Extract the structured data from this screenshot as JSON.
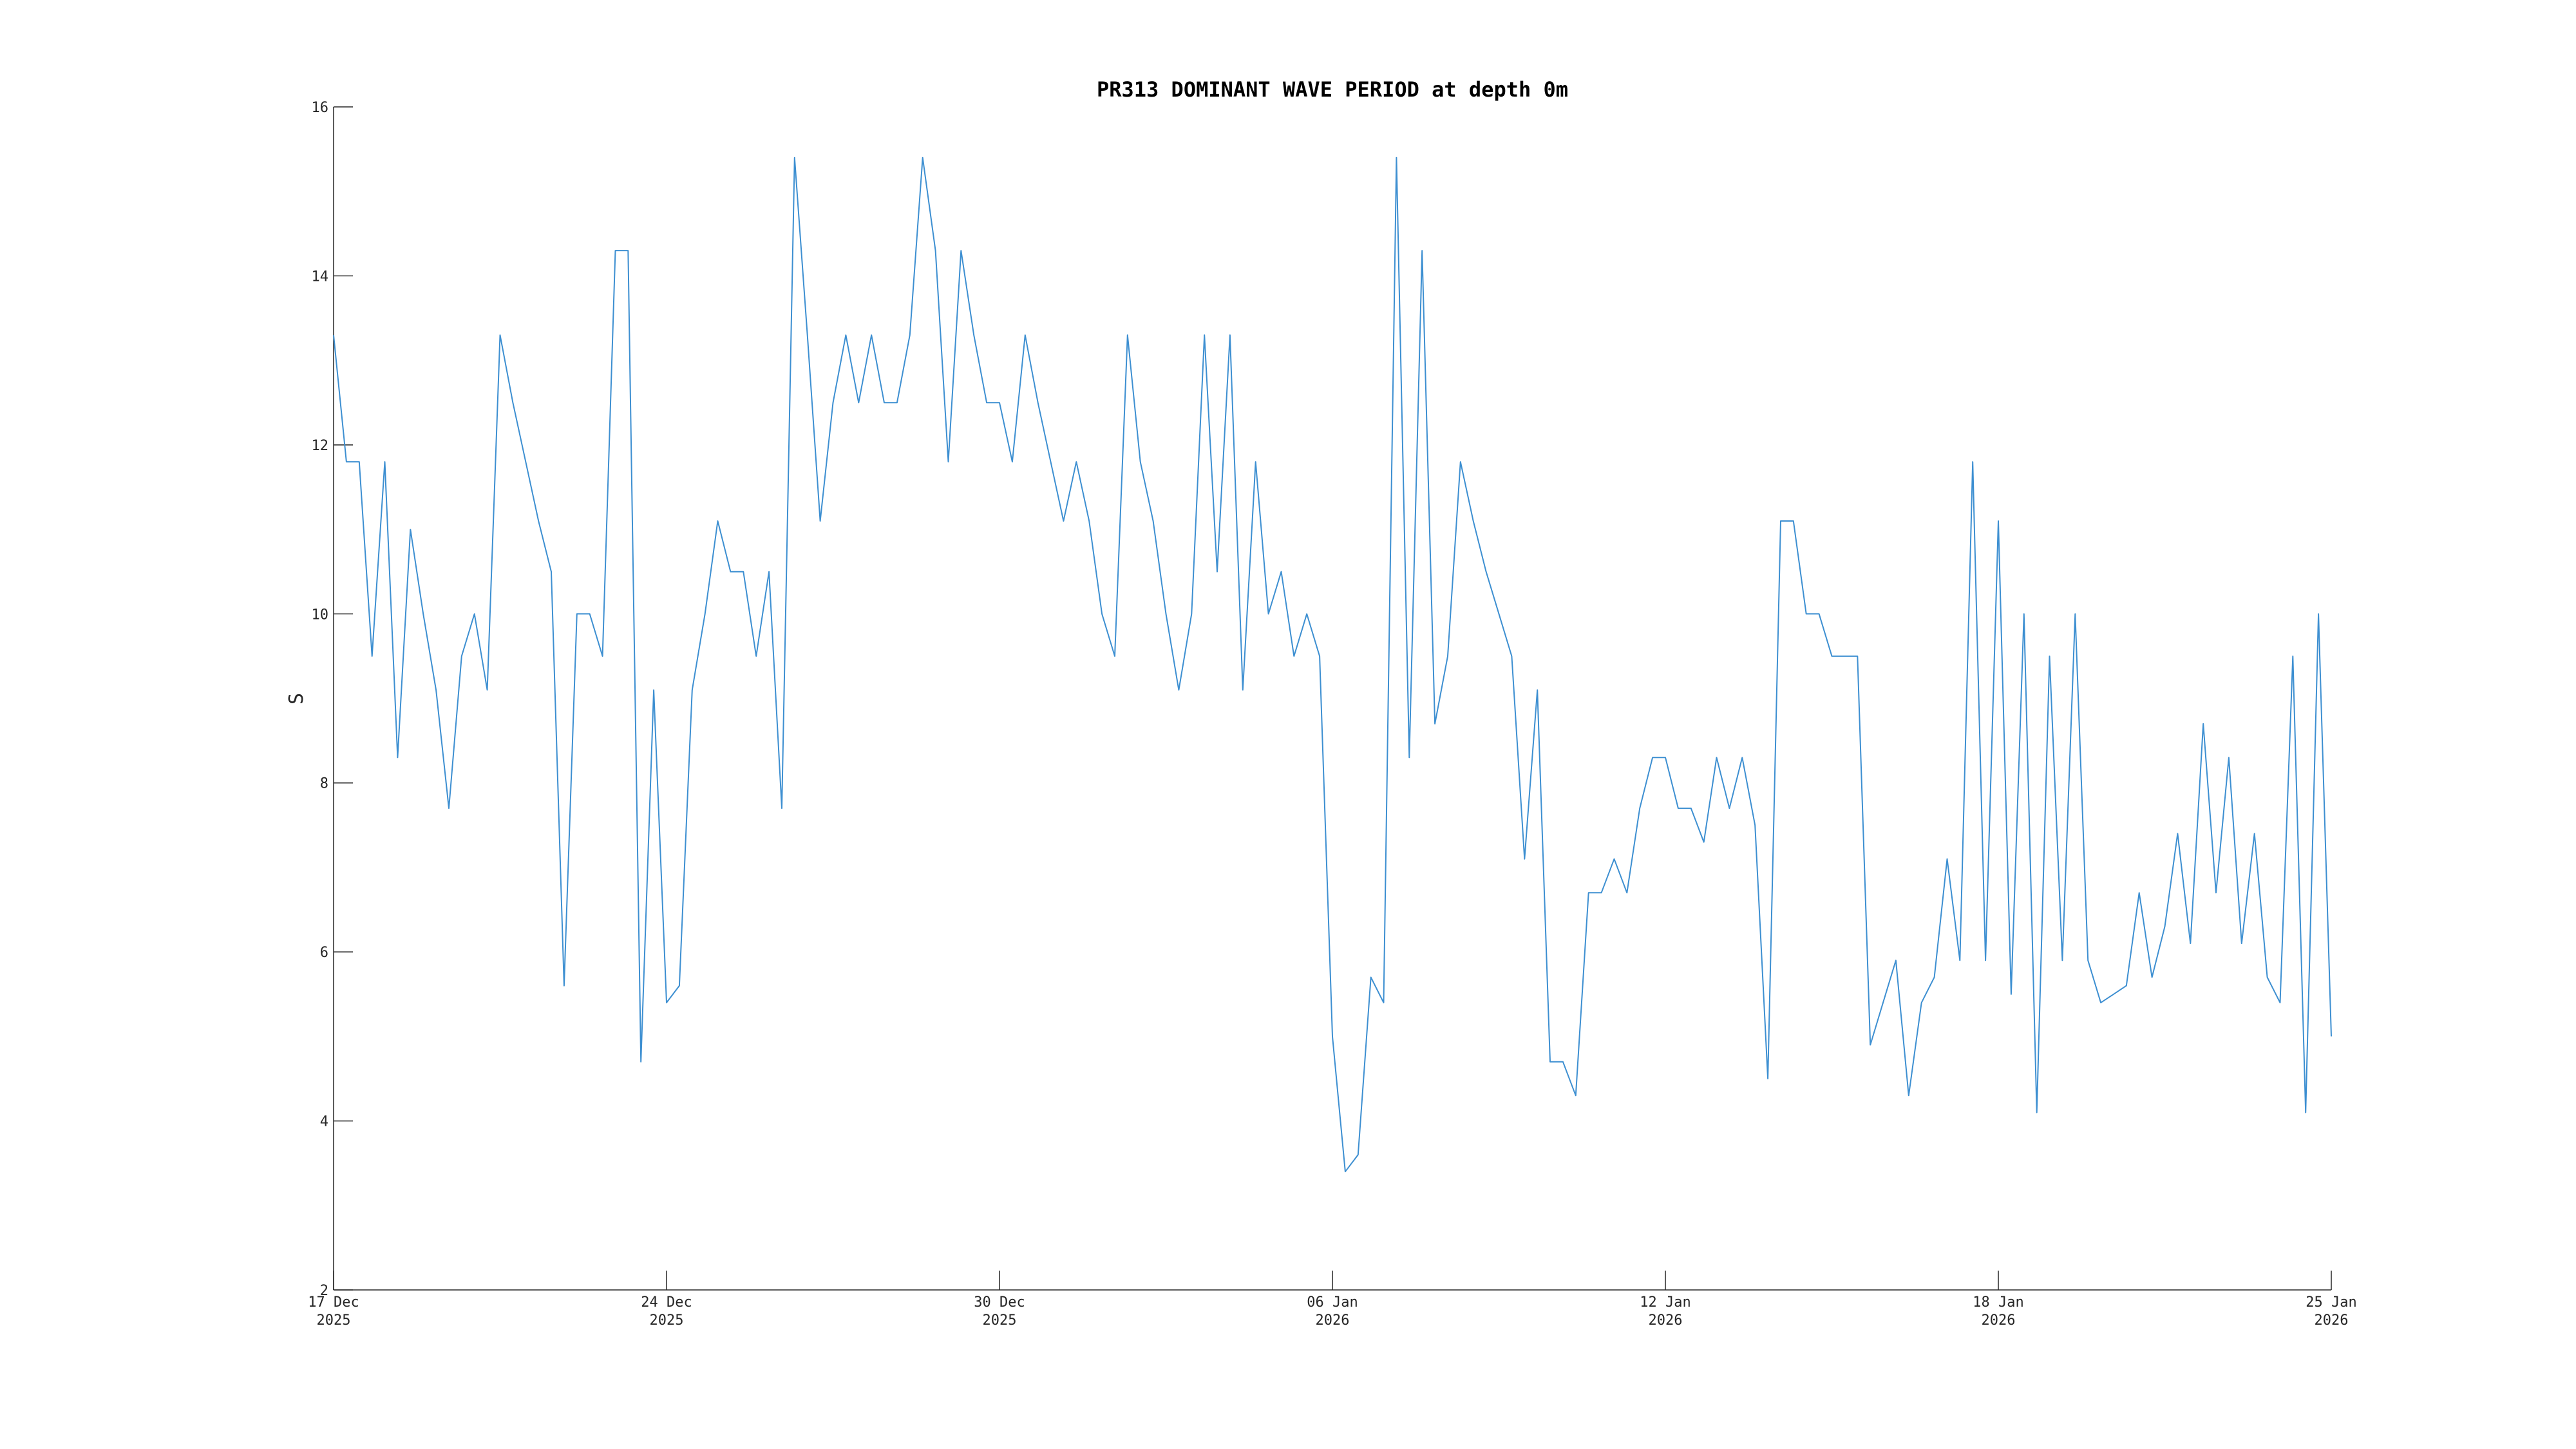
{
  "chart_data": {
    "type": "line",
    "title": "PR313 DOMINANT WAVE PERIOD at depth 0m",
    "y_label": "S",
    "xlim": [
      "2025-12-17 00:00",
      "2026-01-25 00:00"
    ],
    "xticks": [
      {
        "value": "2025-12-17 00:00",
        "label": "17 Dec\n2025"
      },
      {
        "value": "2025-12-23 12:00",
        "label": "24 Dec\n2025"
      },
      {
        "value": "2025-12-30 00:00",
        "label": "30 Dec\n2025"
      },
      {
        "value": "2026-01-05 12:00",
        "label": "06 Jan\n2026"
      },
      {
        "value": "2026-01-12 00:00",
        "label": "12 Jan\n2026"
      },
      {
        "value": "2026-01-18 12:00",
        "label": "18 Jan\n2026"
      },
      {
        "value": "2026-01-25 00:00",
        "label": "25 Jan\n2026"
      }
    ],
    "ylim": [
      2,
      16
    ],
    "yticks": [
      2,
      4,
      6,
      8,
      10,
      12,
      14,
      16
    ],
    "x": [
      "2025-12-17 00:00",
      "2025-12-17 06:00",
      "2025-12-17 12:00",
      "2025-12-17 18:00",
      "2025-12-18 00:00",
      "2025-12-18 06:00",
      "2025-12-18 12:00",
      "2025-12-18 18:00",
      "2025-12-19 00:00",
      "2025-12-19 06:00",
      "2025-12-19 12:00",
      "2025-12-19 18:00",
      "2025-12-20 00:00",
      "2025-12-20 06:00",
      "2025-12-20 12:00",
      "2025-12-20 18:00",
      "2025-12-21 00:00",
      "2025-12-21 06:00",
      "2025-12-21 12:00",
      "2025-12-21 18:00",
      "2025-12-22 00:00",
      "2025-12-22 06:00",
      "2025-12-22 12:00",
      "2025-12-22 18:00",
      "2025-12-23 00:00",
      "2025-12-23 06:00",
      "2025-12-23 12:00",
      "2025-12-23 18:00",
      "2025-12-24 00:00",
      "2025-12-24 06:00",
      "2025-12-24 12:00",
      "2025-12-24 18:00",
      "2025-12-25 00:00",
      "2025-12-25 06:00",
      "2025-12-25 12:00",
      "2025-12-25 18:00",
      "2025-12-26 00:00",
      "2025-12-26 06:00",
      "2025-12-26 12:00",
      "2025-12-26 18:00",
      "2025-12-27 00:00",
      "2025-12-27 06:00",
      "2025-12-27 12:00",
      "2025-12-27 18:00",
      "2025-12-28 00:00",
      "2025-12-28 06:00",
      "2025-12-28 12:00",
      "2025-12-28 18:00",
      "2025-12-29 00:00",
      "2025-12-29 06:00",
      "2025-12-29 12:00",
      "2025-12-29 18:00",
      "2025-12-30 00:00",
      "2025-12-30 06:00",
      "2025-12-30 12:00",
      "2025-12-30 18:00",
      "2025-12-31 00:00",
      "2025-12-31 06:00",
      "2025-12-31 12:00",
      "2025-12-31 18:00",
      "2026-01-01 00:00",
      "2026-01-01 06:00",
      "2026-01-01 12:00",
      "2026-01-01 18:00",
      "2026-01-02 00:00",
      "2026-01-02 06:00",
      "2026-01-02 12:00",
      "2026-01-02 18:00",
      "2026-01-03 00:00",
      "2026-01-03 06:00",
      "2026-01-03 12:00",
      "2026-01-03 18:00",
      "2026-01-04 00:00",
      "2026-01-04 06:00",
      "2026-01-04 12:00",
      "2026-01-04 18:00",
      "2026-01-05 00:00",
      "2026-01-05 06:00",
      "2026-01-05 12:00",
      "2026-01-05 18:00",
      "2026-01-06 00:00",
      "2026-01-06 06:00",
      "2026-01-06 12:00",
      "2026-01-06 18:00",
      "2026-01-07 00:00",
      "2026-01-07 06:00",
      "2026-01-07 12:00",
      "2026-01-07 18:00",
      "2026-01-08 00:00",
      "2026-01-08 06:00",
      "2026-01-08 12:00",
      "2026-01-08 18:00",
      "2026-01-09 00:00",
      "2026-01-09 06:00",
      "2026-01-09 12:00",
      "2026-01-09 18:00",
      "2026-01-10 00:00",
      "2026-01-10 06:00",
      "2026-01-10 12:00",
      "2026-01-10 18:00",
      "2026-01-11 00:00",
      "2026-01-11 06:00",
      "2026-01-11 12:00",
      "2026-01-11 18:00",
      "2026-01-12 00:00",
      "2026-01-12 06:00",
      "2026-01-12 12:00",
      "2026-01-12 18:00",
      "2026-01-13 00:00",
      "2026-01-13 06:00",
      "2026-01-13 12:00",
      "2026-01-13 18:00",
      "2026-01-14 00:00",
      "2026-01-14 06:00",
      "2026-01-14 12:00",
      "2026-01-14 18:00",
      "2026-01-15 00:00",
      "2026-01-15 06:00",
      "2026-01-15 12:00",
      "2026-01-15 18:00",
      "2026-01-16 00:00",
      "2026-01-16 06:00",
      "2026-01-16 12:00",
      "2026-01-16 18:00",
      "2026-01-17 00:00",
      "2026-01-17 06:00",
      "2026-01-17 12:00",
      "2026-01-17 18:00",
      "2026-01-18 00:00",
      "2026-01-18 06:00",
      "2026-01-18 12:00",
      "2026-01-18 18:00",
      "2026-01-19 00:00",
      "2026-01-19 06:00",
      "2026-01-19 12:00",
      "2026-01-19 18:00",
      "2026-01-20 00:00",
      "2026-01-20 06:00",
      "2026-01-20 12:00",
      "2026-01-20 18:00",
      "2026-01-21 00:00",
      "2026-01-21 06:00",
      "2026-01-21 12:00",
      "2026-01-21 18:00",
      "2026-01-22 00:00",
      "2026-01-22 06:00",
      "2026-01-22 12:00",
      "2026-01-22 18:00",
      "2026-01-23 00:00",
      "2026-01-23 06:00",
      "2026-01-23 12:00",
      "2026-01-23 18:00",
      "2026-01-24 00:00",
      "2026-01-24 06:00",
      "2026-01-24 12:00",
      "2026-01-24 18:00",
      "2026-01-25 00:00"
    ],
    "series": [
      {
        "color": "#3d8fd1",
        "values": [
          13.3,
          11.8,
          11.8,
          9.5,
          11.8,
          8.3,
          11,
          10,
          9.1,
          7.7,
          9.5,
          10,
          9.1,
          13.3,
          12.5,
          11.8,
          11.1,
          10.5,
          5.6,
          10,
          10,
          9.5,
          14.3,
          14.3,
          4.7,
          9.1,
          5.4,
          5.6,
          9.1,
          10,
          11.1,
          10.5,
          10.5,
          9.5,
          10.5,
          7.7,
          15.4,
          13.3,
          11.1,
          12.5,
          13.3,
          12.5,
          13.3,
          12.5,
          12.5,
          13.3,
          15.4,
          14.3,
          11.8,
          14.3,
          13.3,
          12.5,
          12.5,
          11.8,
          13.3,
          12.5,
          11.8,
          11.1,
          11.8,
          11.1,
          10,
          9.5,
          13.3,
          11.8,
          11.1,
          10,
          9.1,
          10,
          13.3,
          10.5,
          13.3,
          9.1,
          11.8,
          10,
          10.5,
          9.5,
          10,
          9.5,
          5,
          3.4,
          3.6,
          5.7,
          5.4,
          15.4,
          8.3,
          14.3,
          8.7,
          9.5,
          11.8,
          11.1,
          10.5,
          10,
          9.5,
          7.1,
          9.1,
          4.7,
          4.7,
          4.3,
          6.7,
          6.7,
          7.1,
          6.7,
          7.7,
          8.3,
          8.3,
          7.7,
          7.7,
          7.3,
          8.3,
          7.7,
          8.3,
          7.5,
          4.5,
          11.1,
          11.1,
          10,
          10,
          9.5,
          9.5,
          9.5,
          4.9,
          5.4,
          5.9,
          4.3,
          5.4,
          5.7,
          7.1,
          5.9,
          11.8,
          5.9,
          11.1,
          5.5,
          10,
          4.1,
          9.5,
          5.9,
          10,
          5.9,
          5.4,
          5.5,
          5.6,
          6.7,
          5.7,
          6.3,
          7.4,
          6.1,
          8.7,
          6.7,
          8.3,
          6.1,
          7.4,
          5.7,
          5.4,
          9.5,
          4.1,
          10,
          5
        ]
      }
    ]
  }
}
